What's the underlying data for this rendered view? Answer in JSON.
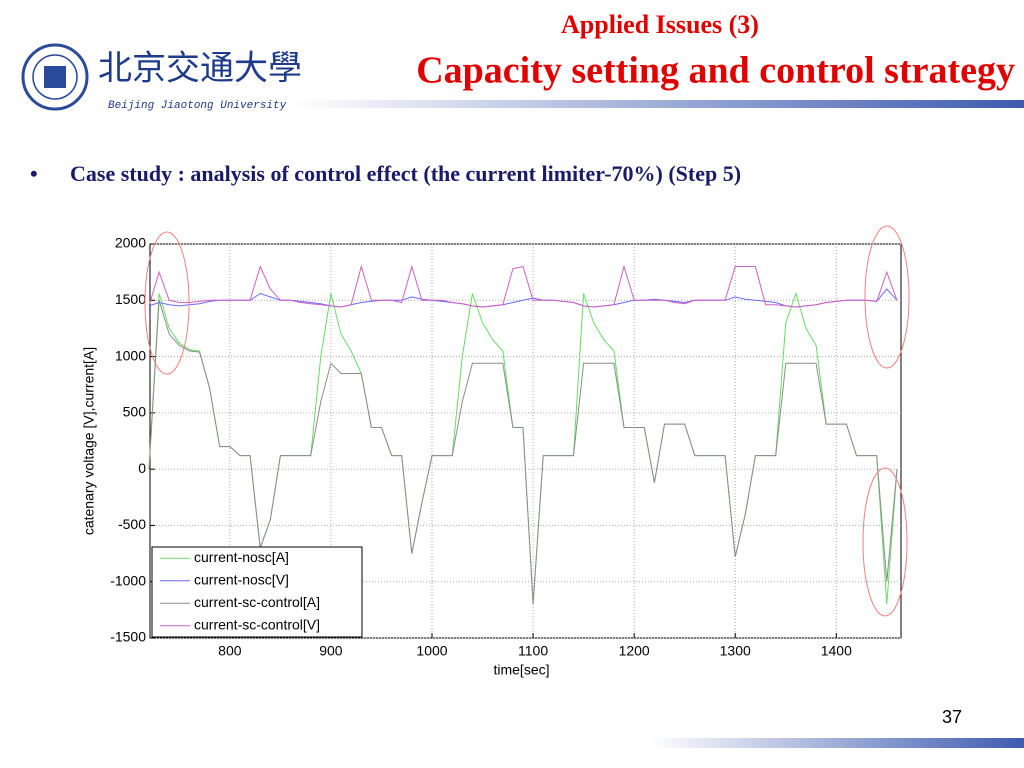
{
  "header": {
    "university_cn": "北京交通大學",
    "university_en": "Beijing Jiaotong University",
    "section": "Applied Issues (3)",
    "title": "Capacity setting and control strategy"
  },
  "bullet": "Case study : analysis of control effect (the current limiter-70%) (Step 5)",
  "page_number": "37",
  "chart_data": {
    "type": "line",
    "xlabel": "time[sec]",
    "ylabel": "catenary voltage [V],current[A]",
    "x": [
      720,
      730,
      740,
      750,
      760,
      770,
      780,
      790,
      800,
      810,
      820,
      830,
      840,
      850,
      860,
      870,
      880,
      890,
      900,
      910,
      920,
      930,
      940,
      950,
      960,
      970,
      980,
      990,
      1000,
      1010,
      1020,
      1030,
      1040,
      1050,
      1060,
      1070,
      1080,
      1090,
      1100,
      1110,
      1120,
      1130,
      1140,
      1150,
      1160,
      1170,
      1180,
      1190,
      1200,
      1210,
      1220,
      1230,
      1240,
      1250,
      1260,
      1270,
      1280,
      1290,
      1300,
      1310,
      1320,
      1330,
      1340,
      1350,
      1360,
      1370,
      1380,
      1390,
      1400,
      1410,
      1420,
      1430,
      1440,
      1450,
      1460
    ],
    "series": [
      {
        "name": "current-nosc[A]",
        "color": "#66dd66",
        "values": [
          0,
          1560,
          1250,
          1120,
          1060,
          1050,
          720,
          200,
          200,
          120,
          120,
          -700,
          -450,
          120,
          120,
          120,
          120,
          1000,
          1560,
          1200,
          1050,
          850,
          370,
          370,
          120,
          120,
          -750,
          -300,
          120,
          120,
          120,
          1000,
          1560,
          1300,
          1150,
          1050,
          370,
          370,
          -1200,
          120,
          120,
          120,
          120,
          1560,
          1300,
          1150,
          1050,
          370,
          370,
          370,
          -120,
          400,
          400,
          400,
          120,
          120,
          120,
          120,
          -780,
          -400,
          120,
          120,
          120,
          1300,
          1560,
          1250,
          1100,
          400,
          400,
          400,
          120,
          120,
          120,
          -1200,
          0
        ]
      },
      {
        "name": "current-nosc[V]",
        "color": "#6a6aff",
        "values": [
          1450,
          1480,
          1460,
          1450,
          1460,
          1470,
          1490,
          1500,
          1500,
          1500,
          1500,
          1560,
          1530,
          1500,
          1500,
          1490,
          1480,
          1470,
          1450,
          1440,
          1460,
          1480,
          1490,
          1500,
          1500,
          1500,
          1530,
          1510,
          1500,
          1490,
          1480,
          1470,
          1450,
          1440,
          1450,
          1460,
          1480,
          1500,
          1520,
          1500,
          1500,
          1490,
          1480,
          1450,
          1440,
          1450,
          1460,
          1480,
          1500,
          1500,
          1510,
          1500,
          1490,
          1480,
          1500,
          1500,
          1500,
          1500,
          1530,
          1510,
          1500,
          1490,
          1480,
          1450,
          1440,
          1450,
          1460,
          1480,
          1490,
          1500,
          1500,
          1500,
          1490,
          1600,
          1500
        ]
      },
      {
        "name": "current-sc-control[A]",
        "color": "#8c8c8c",
        "values": [
          0,
          1500,
          1200,
          1100,
          1050,
          1040,
          720,
          200,
          200,
          120,
          120,
          -700,
          -450,
          120,
          120,
          120,
          120,
          600,
          940,
          850,
          850,
          850,
          370,
          370,
          120,
          120,
          -750,
          -300,
          120,
          120,
          120,
          600,
          940,
          940,
          940,
          940,
          370,
          370,
          -1200,
          120,
          120,
          120,
          120,
          940,
          940,
          940,
          940,
          370,
          370,
          370,
          -120,
          400,
          400,
          400,
          120,
          120,
          120,
          120,
          -780,
          -400,
          120,
          120,
          120,
          940,
          940,
          940,
          940,
          400,
          400,
          400,
          120,
          120,
          120,
          -1000,
          0
        ]
      },
      {
        "name": "current-sc-control[V]",
        "color": "#d060c0",
        "values": [
          1450,
          1750,
          1500,
          1480,
          1480,
          1490,
          1500,
          1500,
          1500,
          1500,
          1500,
          1800,
          1600,
          1500,
          1500,
          1480,
          1470,
          1460,
          1450,
          1440,
          1460,
          1800,
          1500,
          1500,
          1500,
          1480,
          1800,
          1500,
          1500,
          1500,
          1480,
          1470,
          1450,
          1440,
          1450,
          1460,
          1780,
          1800,
          1500,
          1500,
          1500,
          1490,
          1480,
          1450,
          1440,
          1450,
          1460,
          1800,
          1500,
          1500,
          1500,
          1500,
          1480,
          1470,
          1500,
          1500,
          1500,
          1500,
          1800,
          1800,
          1800,
          1460,
          1460,
          1450,
          1440,
          1450,
          1460,
          1480,
          1490,
          1500,
          1500,
          1500,
          1490,
          1750,
          1500
        ]
      }
    ],
    "xlim": [
      721,
      1464
    ],
    "ylim": [
      -1500,
      2000
    ],
    "xticks": [
      800,
      900,
      1000,
      1100,
      1200,
      1300,
      1400
    ],
    "yticks": [
      -1500,
      -1000,
      -500,
      0,
      500,
      1000,
      1500,
      2000
    ],
    "grid": true,
    "legend": "lower left"
  }
}
